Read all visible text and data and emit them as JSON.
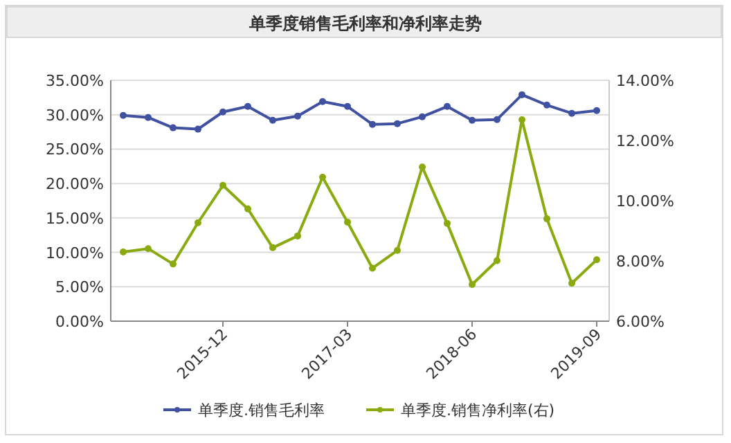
{
  "chart_data": {
    "type": "line",
    "title": "单季度销售毛利率和净利率走势",
    "categories": [
      null,
      null,
      null,
      null,
      "2015-12",
      null,
      null,
      null,
      null,
      "2017-03",
      null,
      null,
      null,
      null,
      "2018-06",
      null,
      null,
      null,
      null,
      "2019-09"
    ],
    "series": [
      {
        "name": "单季度.销售毛利率",
        "color": "#3f51a0",
        "values": [
          29.9,
          29.6,
          28.1,
          27.9,
          30.4,
          31.2,
          29.2,
          29.8,
          31.9,
          31.2,
          28.6,
          28.7,
          29.7,
          31.2,
          29.2,
          29.3,
          32.9,
          31.4,
          30.2,
          30.6
        ]
      },
      {
        "name": "单季度.销售净利率(右)",
        "color": "#8aaa10",
        "axis": "y2",
        "values": [
          8.3,
          8.41,
          7.9,
          9.27,
          10.51,
          9.73,
          8.44,
          8.83,
          10.78,
          9.29,
          7.76,
          8.35,
          11.12,
          9.25,
          7.22,
          8.01,
          12.69,
          9.4,
          7.26,
          8.04
        ]
      }
    ],
    "ylim": [
      0,
      35
    ],
    "yticks": [
      {
        "value": 0,
        "label": "0.00%"
      },
      {
        "value": 5,
        "label": "5.00%"
      },
      {
        "value": 10,
        "label": "10.00%"
      },
      {
        "value": 15,
        "label": "15.00%"
      },
      {
        "value": 20,
        "label": "20.00%"
      },
      {
        "value": 25,
        "label": "25.00%"
      },
      {
        "value": 30,
        "label": "30.00%"
      },
      {
        "value": 35,
        "label": "35.00%"
      }
    ],
    "y2lim": [
      6,
      14
    ],
    "y2ticks": [
      {
        "value": 6,
        "label": "6.00%"
      },
      {
        "value": 8,
        "label": "8.00%"
      },
      {
        "value": 10,
        "label": "10.00%"
      },
      {
        "value": 12,
        "label": "12.00%"
      },
      {
        "value": 14,
        "label": "14.00%"
      }
    ],
    "grid": "y",
    "legend": "bottom",
    "marker": "circle",
    "line_style": "solid"
  }
}
